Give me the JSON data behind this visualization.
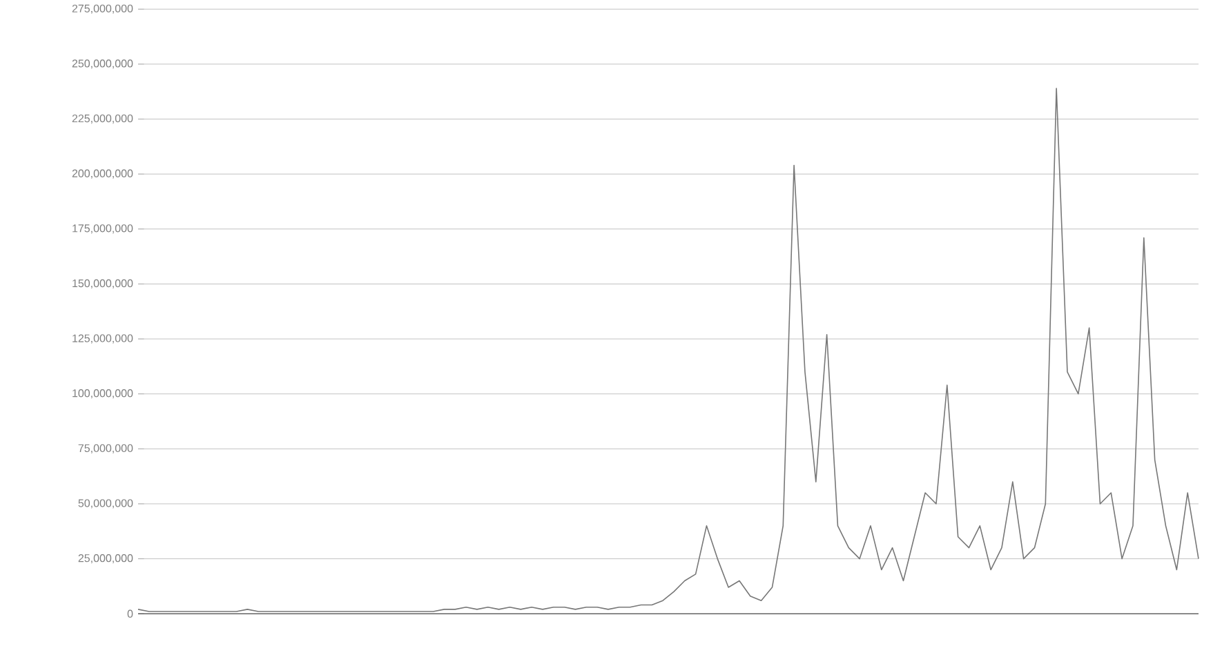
{
  "chart_data": {
    "type": "line",
    "categories": [
      null,
      null,
      null,
      null,
      null,
      null,
      null,
      null,
      null,
      null,
      null,
      null,
      null,
      null,
      null,
      null,
      null,
      null,
      null,
      null,
      null,
      null,
      null,
      null,
      null,
      null,
      null,
      null,
      null,
      null,
      null,
      null,
      null,
      null,
      null,
      null,
      null,
      null,
      null,
      null,
      null,
      null,
      null,
      null,
      null,
      null,
      null,
      null,
      null,
      null,
      null,
      null,
      null,
      null,
      null,
      null,
      null,
      null,
      null,
      null,
      null,
      null,
      null,
      null,
      null,
      null,
      null,
      null,
      null,
      null,
      null,
      null,
      null,
      null,
      null,
      null,
      null,
      null,
      null,
      null,
      null,
      null,
      null,
      null,
      null,
      null,
      null,
      null,
      null,
      null,
      null,
      null,
      null,
      null,
      null,
      null,
      null,
      null
    ],
    "series": [
      {
        "color": "#777777",
        "values": [
          2000000,
          1000000,
          1000000,
          1000000,
          1000000,
          1000000,
          1000000,
          1000000,
          1000000,
          1000000,
          2000000,
          1000000,
          1000000,
          1000000,
          1000000,
          1000000,
          1000000,
          1000000,
          1000000,
          1000000,
          1000000,
          1000000,
          1000000,
          1000000,
          1000000,
          1000000,
          1000000,
          1000000,
          2000000,
          2000000,
          3000000,
          2000000,
          3000000,
          2000000,
          3000000,
          2000000,
          3000000,
          2000000,
          3000000,
          3000000,
          2000000,
          3000000,
          3000000,
          2000000,
          3000000,
          3000000,
          4000000,
          4000000,
          6000000,
          10000000,
          15000000,
          18000000,
          40000000,
          25000000,
          12000000,
          15000000,
          8000000,
          6000000,
          12000000,
          40000000,
          204000000,
          110000000,
          60000000,
          127000000,
          40000000,
          30000000,
          25000000,
          40000000,
          20000000,
          30000000,
          15000000,
          35000000,
          55000000,
          50000000,
          104000000,
          35000000,
          30000000,
          40000000,
          20000000,
          30000000,
          60000000,
          25000000,
          30000000,
          50000000,
          239000000,
          110000000,
          100000000,
          130000000,
          50000000,
          55000000,
          25000000,
          40000000,
          171000000,
          70000000,
          40000000,
          20000000,
          55000000,
          25000000
        ]
      }
    ],
    "ylim": [
      0,
      275000000
    ],
    "yticks": [
      {
        "value": 0,
        "label": "0"
      },
      {
        "value": 25000000,
        "label": "25,000,000"
      },
      {
        "value": 50000000,
        "label": "50,000,000"
      },
      {
        "value": 75000000,
        "label": "75,000,000"
      },
      {
        "value": 100000000,
        "label": "100,000,000"
      },
      {
        "value": 125000000,
        "label": "125,000,000"
      },
      {
        "value": 150000000,
        "label": "150,000,000"
      },
      {
        "value": 175000000,
        "label": "175,000,000"
      },
      {
        "value": 200000000,
        "label": "200,000,000"
      },
      {
        "value": 225000000,
        "label": "225,000,000"
      },
      {
        "value": 250000000,
        "label": "250,000,000"
      },
      {
        "value": 275000000,
        "label": "275,000,000"
      }
    ],
    "grid": "y",
    "tick_labels": "y",
    "marker": "none",
    "line_style": "solid"
  }
}
